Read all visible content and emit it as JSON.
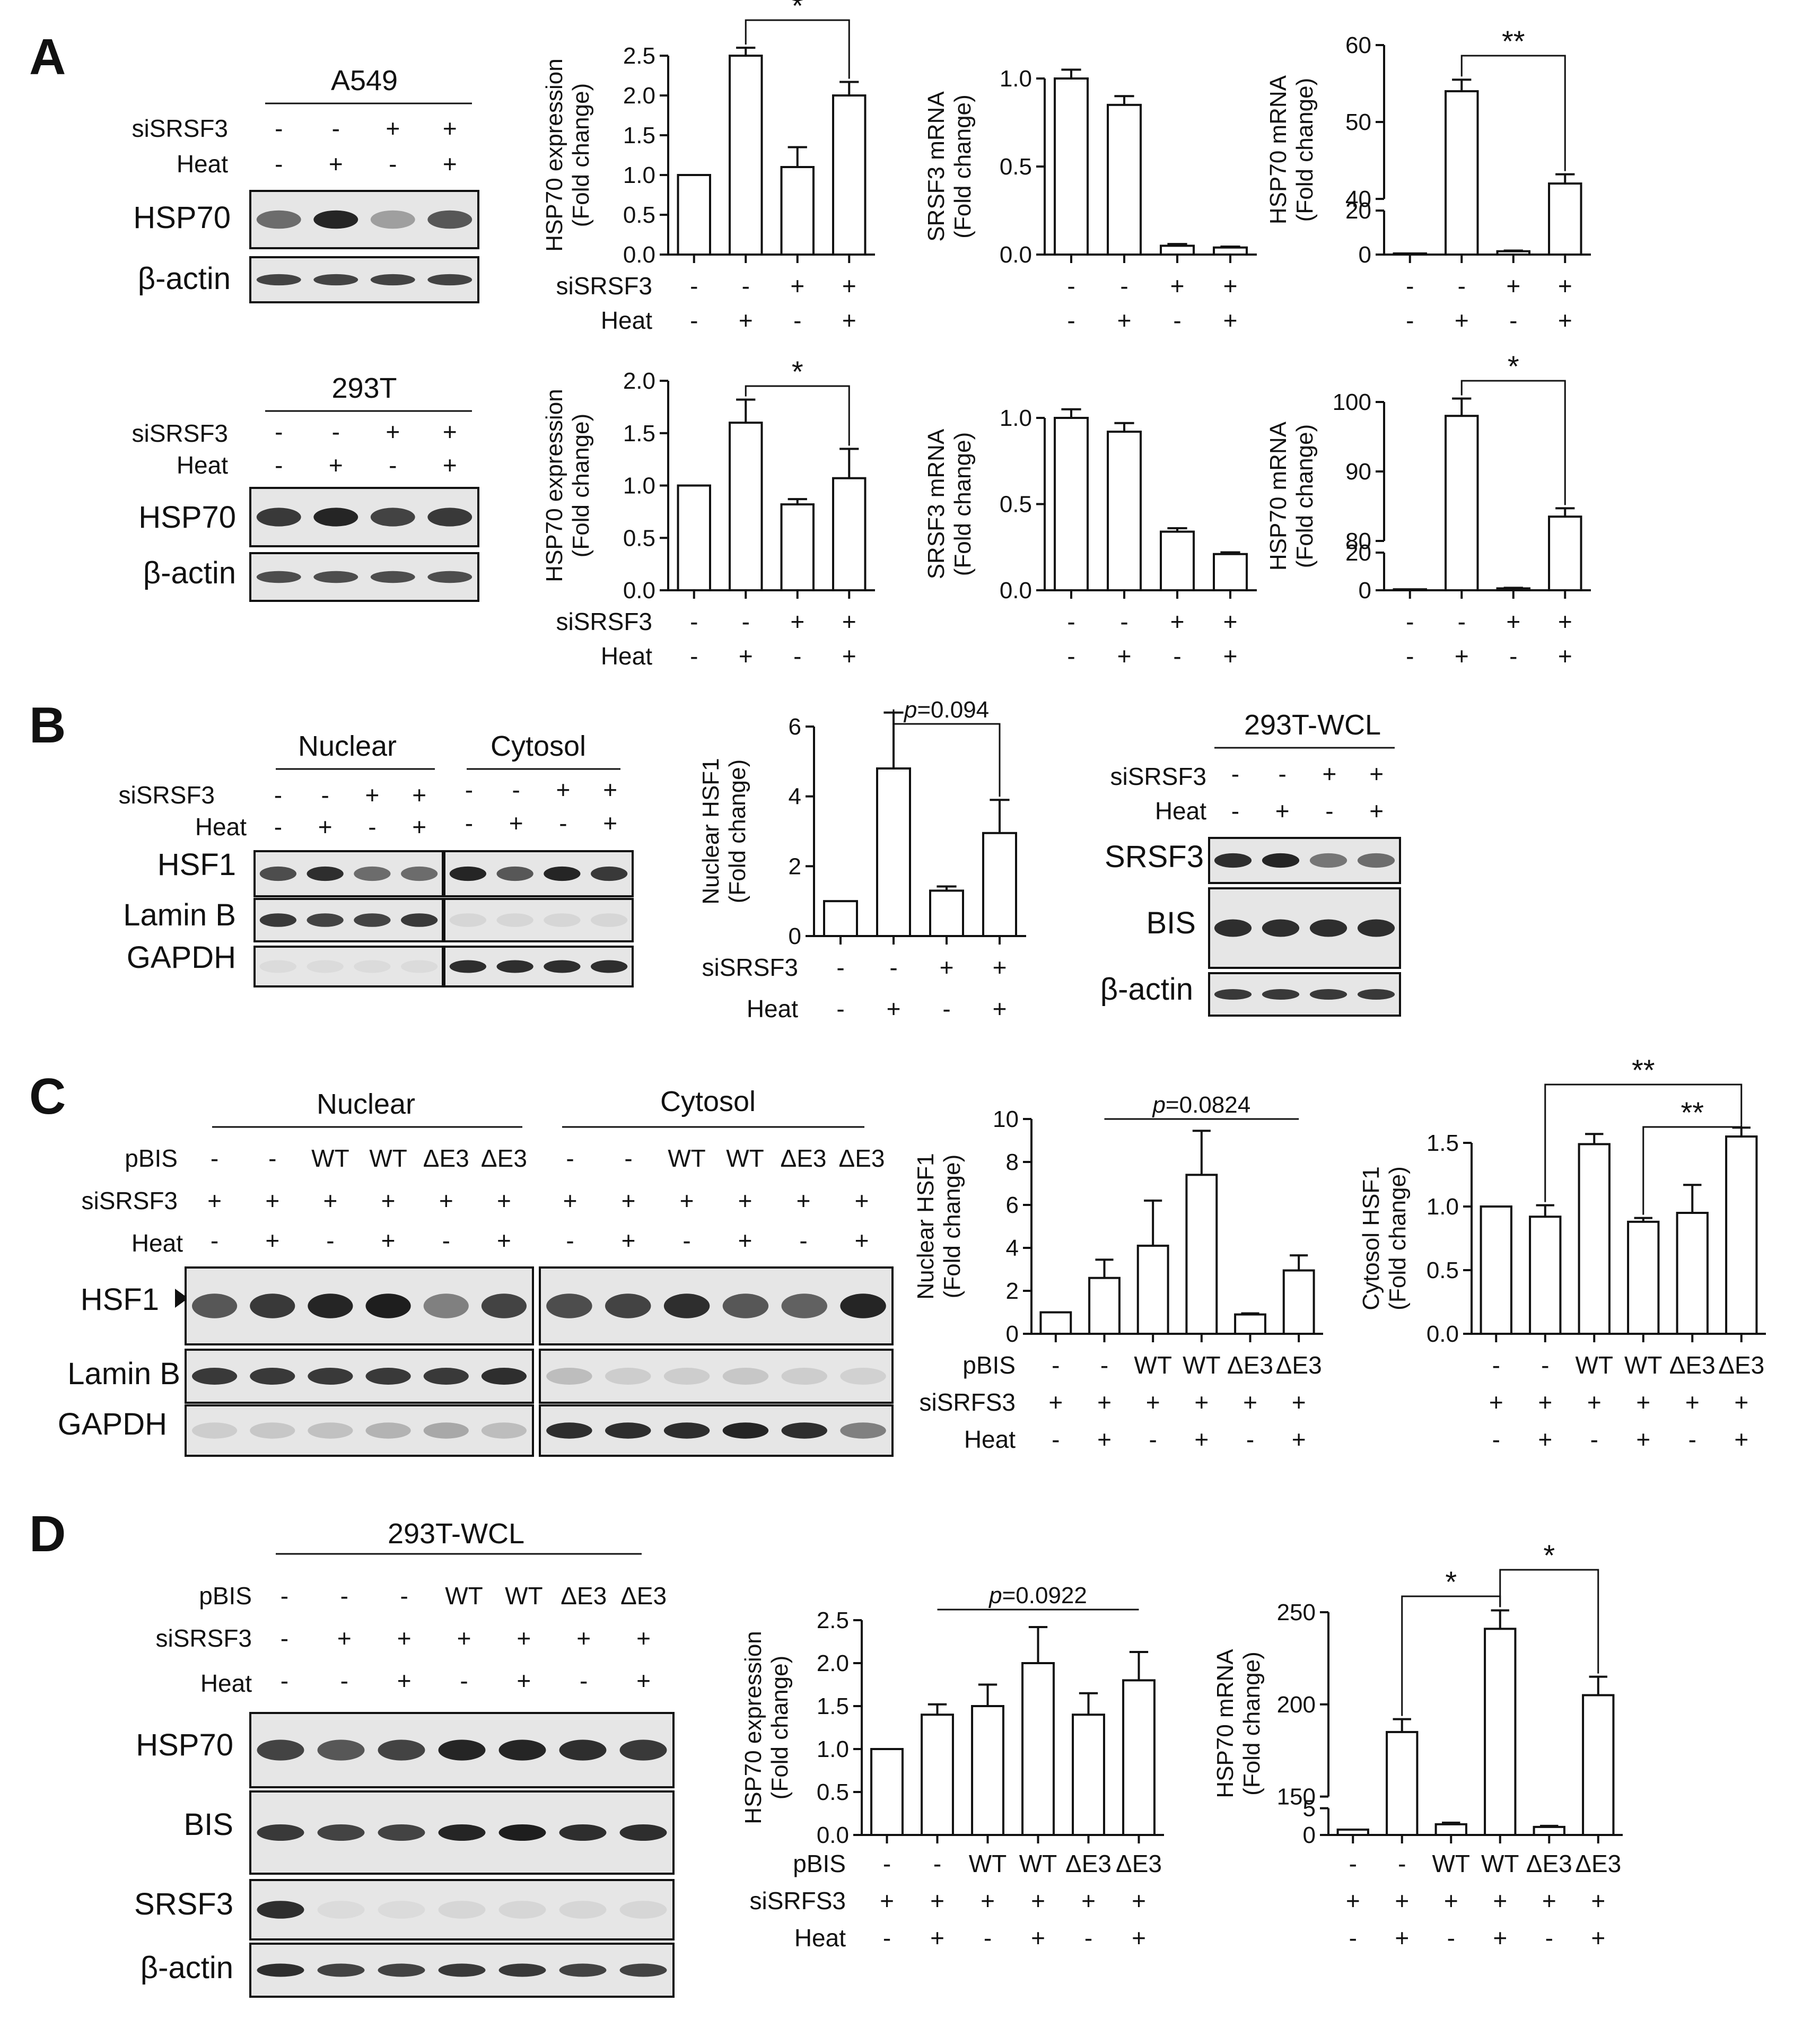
{
  "panels": {
    "A": {
      "letter": "A",
      "rows": [
        {
          "cell_line": "A549",
          "blots": [
            "HSP70",
            "β-actin"
          ],
          "conditions": {
            "labels": [
              "siSRSF3",
              "Heat"
            ],
            "siSRSF3": [
              "-",
              "-",
              "+",
              "+"
            ],
            "Heat": [
              "-",
              "+",
              "-",
              "+"
            ]
          },
          "charts": [
            {
              "type": "bar",
              "ylabel": "HSP70 expression\n(Fold change)",
              "ylim": [
                0,
                2.5
              ],
              "yticks": [
                "0.0",
                "0.5",
                "1.0",
                "1.5",
                "2.0",
                "2.5"
              ],
              "values": [
                1.0,
                2.5,
                1.1,
                2.0
              ],
              "errors": [
                0,
                0.1,
                0.25,
                0.17
              ],
              "sig": [
                {
                  "from": 1,
                  "to": 3,
                  "label": "*"
                }
              ],
              "cond_labels": [
                "siSRSF3",
                "Heat"
              ]
            },
            {
              "type": "bar",
              "ylabel": "SRSF3 mRNA\n(Fold change)",
              "ylim": [
                0,
                1.0
              ],
              "yticks": [
                "0.0",
                "0.5",
                "1.0"
              ],
              "values": [
                1.0,
                0.85,
                0.05,
                0.04
              ],
              "errors": [
                0.05,
                0.05,
                0.01,
                0.005
              ],
              "sig": [],
              "cond_labels": []
            },
            {
              "type": "bar",
              "ylabel": "HSP70 mRNA\n(Fold change)",
              "broken": true,
              "ylim": [
                0,
                60
              ],
              "yticks_low": [
                "0",
                "20"
              ],
              "yticks_high": [
                "40",
                "50",
                "60"
              ],
              "values": [
                0.5,
                54,
                1.5,
                42
              ],
              "errors": [
                0,
                1.5,
                0.3,
                1.2
              ],
              "sig": [
                {
                  "from": 1,
                  "to": 3,
                  "label": "**"
                }
              ],
              "cond_labels": []
            }
          ]
        },
        {
          "cell_line": "293T",
          "blots": [
            "HSP70",
            "β-actin"
          ],
          "conditions": {
            "labels": [
              "siSRSF3",
              "Heat"
            ],
            "siSRSF3": [
              "-",
              "-",
              "+",
              "+"
            ],
            "Heat": [
              "-",
              "+",
              "-",
              "+"
            ]
          },
          "charts": [
            {
              "type": "bar",
              "ylabel": "HSP70 expression\n(Fold change)",
              "ylim": [
                0,
                2.0
              ],
              "yticks": [
                "0.0",
                "0.5",
                "1.0",
                "1.5",
                "2.0"
              ],
              "values": [
                1.0,
                1.6,
                0.82,
                1.07
              ],
              "errors": [
                0,
                0.22,
                0.05,
                0.28
              ],
              "sig": [
                {
                  "from": 1,
                  "to": 3,
                  "label": "*"
                }
              ],
              "cond_labels": [
                "siSRSF3",
                "Heat"
              ]
            },
            {
              "type": "bar",
              "ylabel": "SRSF3 mRNA\n(Fold change)",
              "ylim": [
                0,
                1.0
              ],
              "yticks": [
                "0.0",
                "0.5",
                "1.0"
              ],
              "values": [
                1.0,
                0.92,
                0.34,
                0.21
              ],
              "errors": [
                0.05,
                0.05,
                0.02,
                0.01
              ],
              "sig": [],
              "cond_labels": []
            },
            {
              "type": "bar",
              "ylabel": "HSP70 mRNA\n(Fold change)",
              "broken": true,
              "ylim": [
                0,
                100
              ],
              "yticks_low": [
                "0",
                "20"
              ],
              "yticks_high": [
                "80",
                "90",
                "100"
              ],
              "values": [
                0.5,
                98,
                1,
                83.5
              ],
              "errors": [
                0,
                2.5,
                0.3,
                1.2
              ],
              "sig": [
                {
                  "from": 1,
                  "to": 3,
                  "label": "*"
                }
              ],
              "cond_labels": []
            }
          ]
        }
      ]
    },
    "B": {
      "letter": "B",
      "fractions": [
        "Nuclear",
        "Cytosol"
      ],
      "blots": [
        "HSF1",
        "Lamin B",
        "GAPDH"
      ],
      "conditions": {
        "siSRSF3": [
          "-",
          "-",
          "+",
          "+"
        ],
        "Heat": [
          "-",
          "+",
          "-",
          "+"
        ]
      },
      "chart": {
        "type": "bar",
        "ylabel": "Nuclear HSF1\n(Fold change)",
        "ylim": [
          0,
          6
        ],
        "yticks": [
          "0",
          "2",
          "4",
          "6"
        ],
        "values": [
          1,
          4.8,
          1.3,
          2.95
        ],
        "errors": [
          0,
          1.6,
          0.12,
          0.95
        ],
        "sig": [
          {
            "from": 1,
            "to": 3,
            "label": "p=0.094"
          }
        ],
        "cond_labels": [
          "siSRSF3",
          "Heat"
        ]
      },
      "wcl": {
        "title": "293T-WCL",
        "blots": [
          "SRSF3",
          "BIS",
          "β-actin"
        ]
      }
    },
    "C": {
      "letter": "C",
      "fractions": [
        "Nuclear",
        "Cytosol"
      ],
      "blots": [
        "HSF1",
        "Lamin B",
        "GAPDH"
      ],
      "conditions": {
        "pBIS": [
          "-",
          "-",
          "WT",
          "WT",
          "ΔE3",
          "ΔE3"
        ],
        "siSRSF3": [
          "+",
          "+",
          "+",
          "+",
          "+",
          "+"
        ],
        "Heat": [
          "-",
          "+",
          "-",
          "+",
          "-",
          "+"
        ]
      },
      "charts": [
        {
          "type": "bar",
          "ylabel": "Nuclear HSF1\n(Fold change)",
          "ylim": [
            0,
            10
          ],
          "yticks": [
            "0",
            "2",
            "4",
            "6",
            "8",
            "10"
          ],
          "values": [
            1,
            2.6,
            4.1,
            7.4,
            0.9,
            2.95
          ],
          "errors": [
            0,
            0.85,
            2.1,
            2.05,
            0.05,
            0.7
          ],
          "sig_line": "p=0.0824",
          "cond_labels": [
            "pBIS",
            "siRFS3_label",
            "Heat"
          ]
        },
        {
          "type": "bar",
          "ylabel": "Cytosol HSF1\n(Fold change)",
          "ylim": [
            0,
            1.5
          ],
          "yticks": [
            "0.0",
            "0.5",
            "1.0",
            "1.5"
          ],
          "values": [
            1.0,
            0.92,
            1.49,
            0.88,
            0.95,
            1.55
          ],
          "errors": [
            0,
            0.09,
            0.08,
            0.03,
            0.22,
            0.07
          ],
          "sig": [
            {
              "from": 1,
              "to": 5,
              "label": "**"
            },
            {
              "from": 3,
              "to": 5,
              "label": "**"
            }
          ]
        }
      ],
      "siRFS3_label": "siSRFS3"
    },
    "D": {
      "letter": "D",
      "title": "293T-WCL",
      "blots": [
        "HSP70",
        "BIS",
        "SRSF3",
        "β-actin"
      ],
      "conditions": {
        "pBIS": [
          "-",
          "-",
          "-",
          "WT",
          "WT",
          "ΔE3",
          "ΔE3"
        ],
        "siSRSF3": [
          "-",
          "+",
          "+",
          "+",
          "+",
          "+",
          "+"
        ],
        "Heat": [
          "-",
          "-",
          "+",
          "-",
          "+",
          "-",
          "+"
        ]
      },
      "charts": [
        {
          "type": "bar",
          "ylabel": "HSP70 expression\n(Fold change)",
          "ylim": [
            0,
            2.5
          ],
          "yticks": [
            "0.0",
            "0.5",
            "1.0",
            "1.5",
            "2.0",
            "2.5"
          ],
          "values": [
            1.0,
            1.4,
            1.5,
            2.0,
            1.4,
            1.8
          ],
          "errors": [
            0,
            0.12,
            0.25,
            0.42,
            0.25,
            0.33
          ],
          "sig_line": "p=0.0922"
        },
        {
          "type": "bar",
          "ylabel": "HSP70 mRNA\n(Fold change)",
          "broken": true,
          "yticks_low": [
            "0",
            "5"
          ],
          "yticks_high": [
            "150",
            "200",
            "250"
          ],
          "values": [
            1,
            185,
            2,
            241,
            1.5,
            205
          ],
          "errors": [
            0,
            7,
            0.3,
            10,
            0.2,
            10
          ],
          "sig": [
            {
              "from": 1,
              "to": 3,
              "label": "*"
            },
            {
              "from": 3,
              "to": 5,
              "label": "*"
            }
          ]
        }
      ]
    }
  },
  "common": {
    "pBIS": "pBIS",
    "siSRSF3": "siSRSF3",
    "siSRFS3": "siSRFS3",
    "Heat": "Heat",
    "pBIS_vals": [
      "-",
      "-",
      "WT",
      "WT",
      "ΔE3",
      "ΔE3"
    ],
    "plus6": [
      "+",
      "+",
      "+",
      "+",
      "+",
      "+"
    ],
    "heat6": [
      "-",
      "+",
      "-",
      "+",
      "-",
      "+"
    ],
    "si4": [
      "-",
      "-",
      "+",
      "+"
    ],
    "heat4": [
      "-",
      "+",
      "-",
      "+"
    ]
  }
}
